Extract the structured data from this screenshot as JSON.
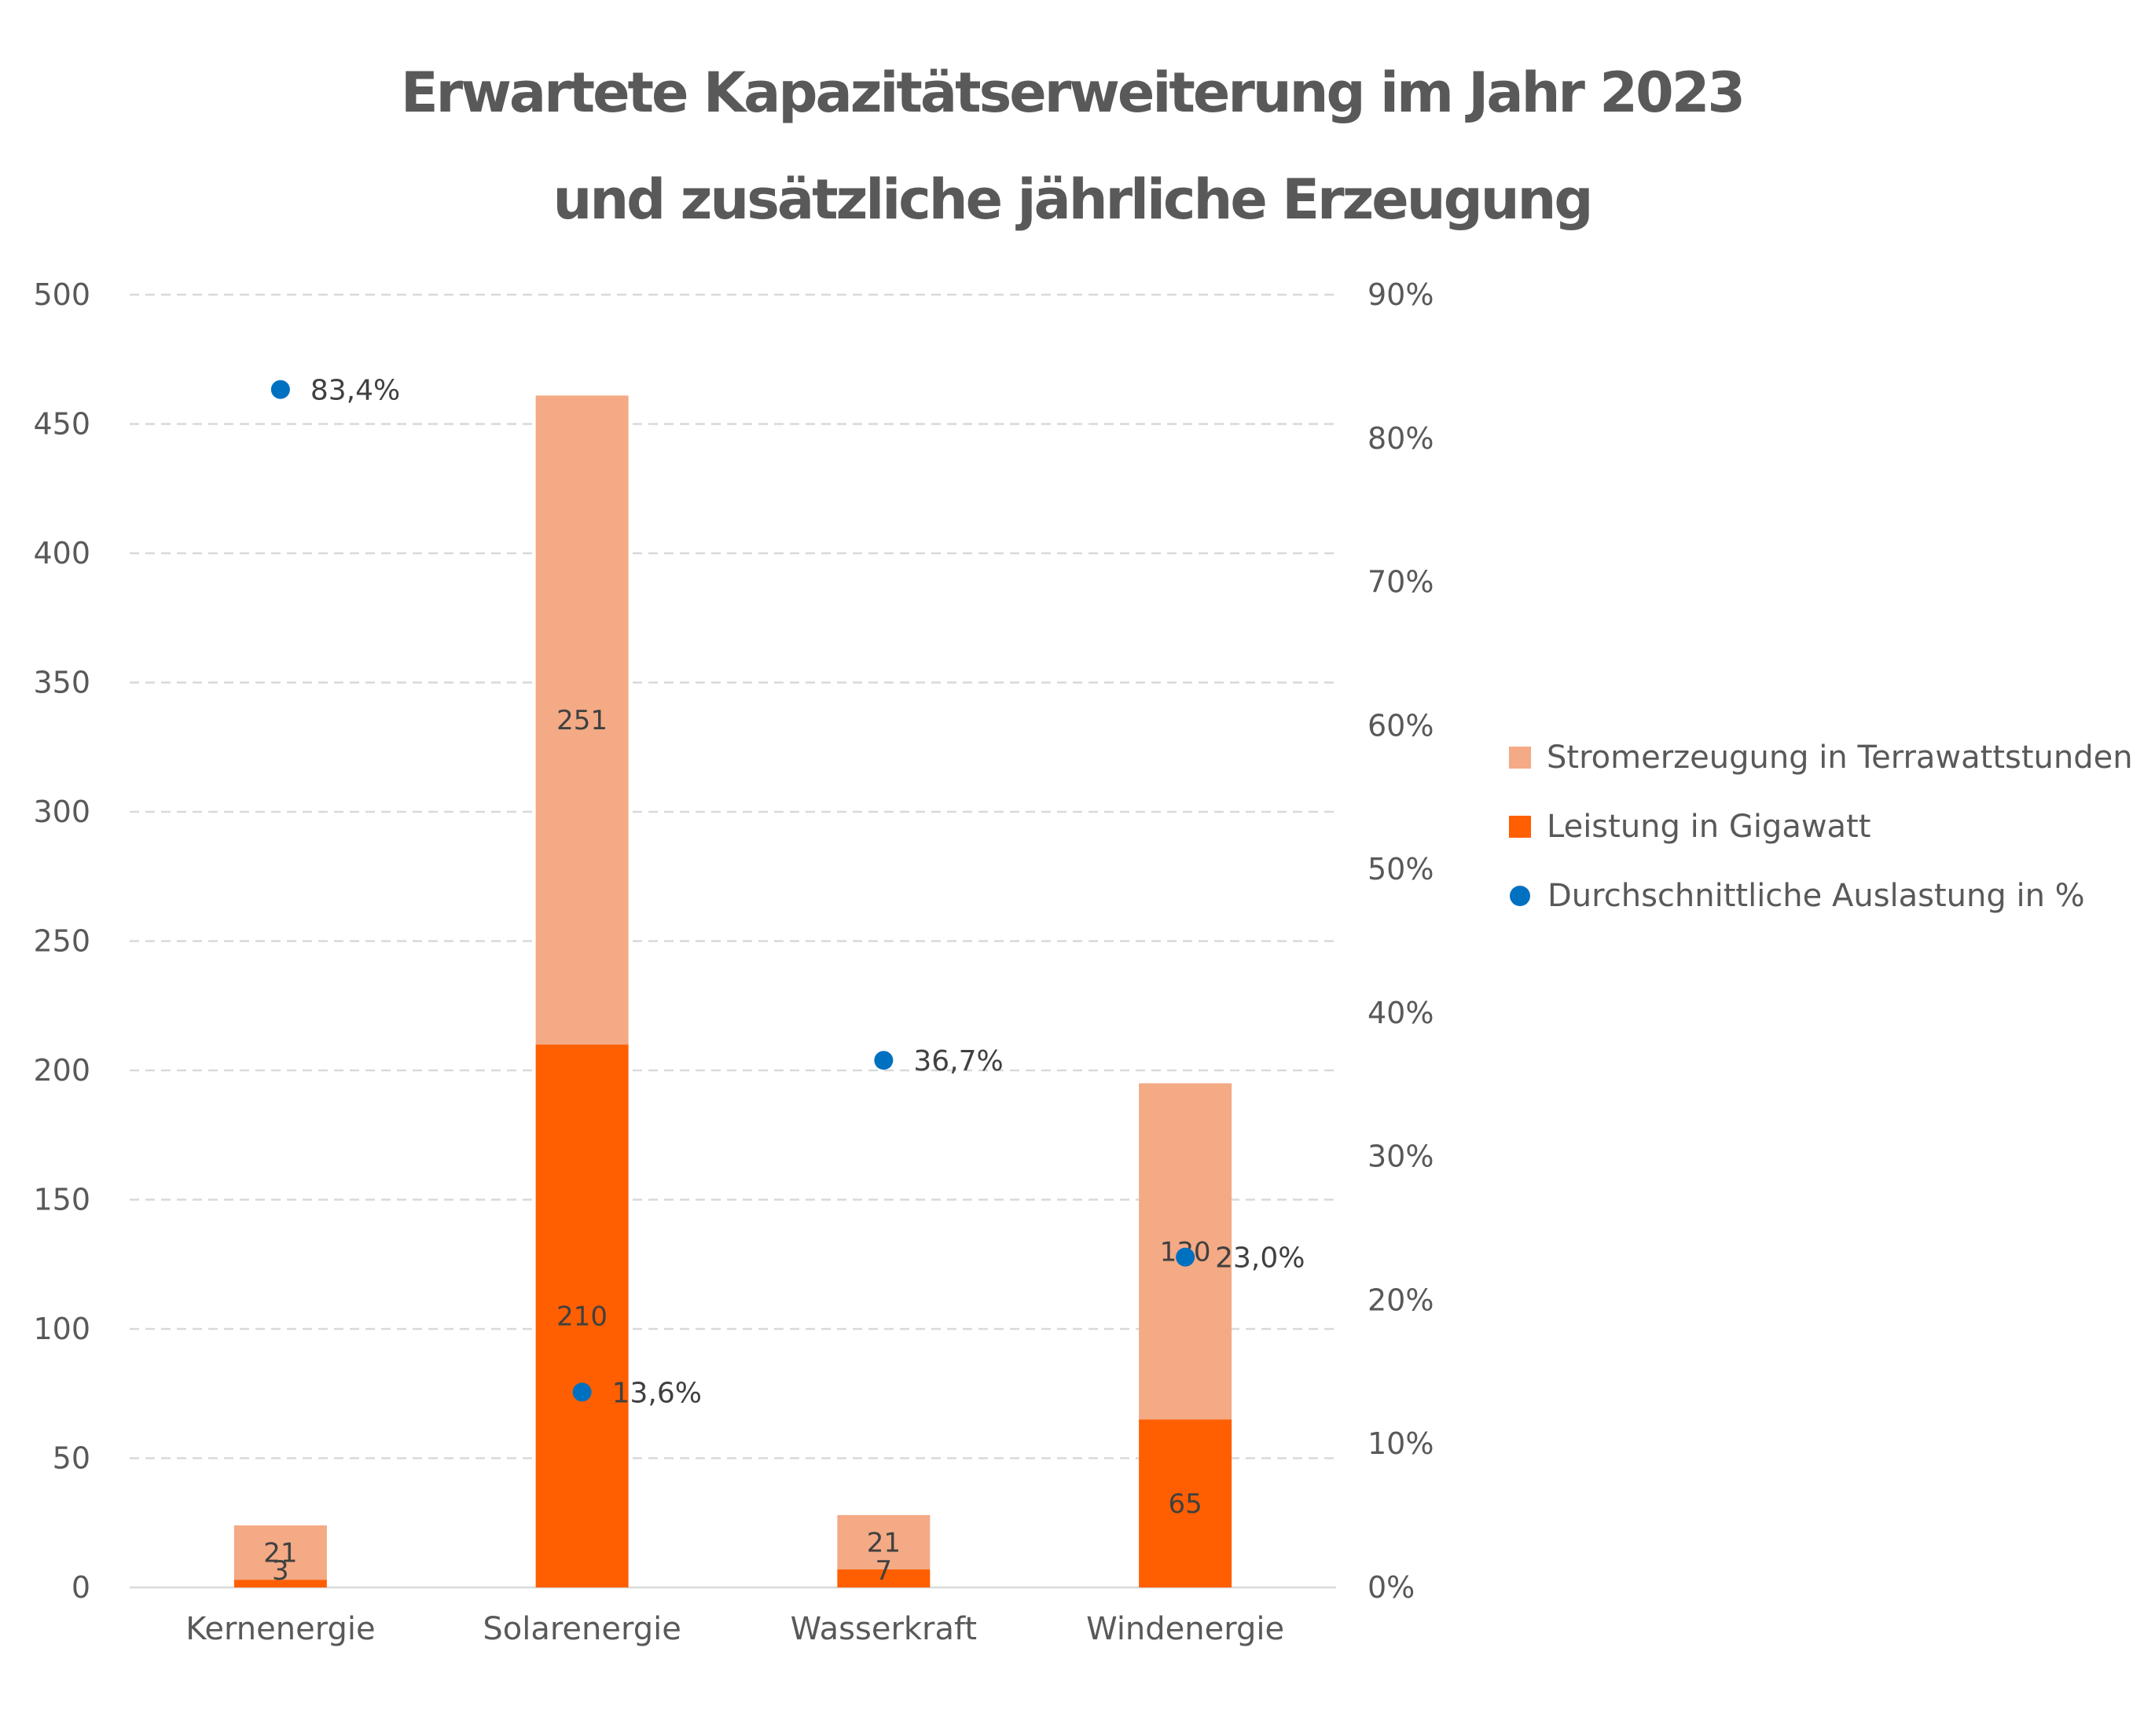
{
  "title_lines": [
    "Erwartete Kapazitätserweiterung im Jahr 2023",
    "und zusätzliche jährliche Erzeugung"
  ],
  "chart_data": {
    "type": "bar",
    "stacked": true,
    "categories": [
      "Kernenergie",
      "Solarenergie",
      "Wasserkraft",
      "Windenergie"
    ],
    "series": [
      {
        "name": "Leistung in Gigawatt",
        "axis": "left",
        "values": [
          3,
          210,
          7,
          65
        ],
        "labels": [
          "3",
          "210",
          "7",
          "65"
        ],
        "color": "#ff5f00"
      },
      {
        "name": "Stromerzeugung in Terrawattstunden",
        "axis": "left",
        "values": [
          21,
          251,
          21,
          130
        ],
        "labels": [
          "21",
          "251",
          "21",
          "130"
        ],
        "color": "#f3aa85"
      },
      {
        "name": "Durchschnittliche Auslastung in %",
        "axis": "right",
        "type": "scatter",
        "values": [
          83.4,
          13.6,
          36.7,
          23.0
        ],
        "labels": [
          "83,4%",
          "13,6%",
          "36,7%",
          "23,0%"
        ],
        "color": "#0070c0"
      }
    ],
    "left_axis": {
      "min": 0,
      "max": 500,
      "ticks": [
        0,
        50,
        100,
        150,
        200,
        250,
        300,
        350,
        400,
        450,
        500
      ],
      "tick_labels": [
        "0",
        "50",
        "100",
        "150",
        "200",
        "250",
        "300",
        "350",
        "400",
        "450",
        "500"
      ]
    },
    "right_axis": {
      "min": 0,
      "max": 90,
      "ticks": [
        0,
        10,
        20,
        30,
        40,
        50,
        60,
        70,
        80,
        90
      ],
      "tick_labels": [
        "0%",
        "10%",
        "20%",
        "30%",
        "40%",
        "50%",
        "60%",
        "70%",
        "80%",
        "90%"
      ]
    },
    "grid": true,
    "legend_position": "right",
    "legend": [
      "Stromerzeugung in Terrawattstunden",
      "Leistung in Gigawatt",
      "Durchschnittliche Auslastung in %"
    ]
  }
}
